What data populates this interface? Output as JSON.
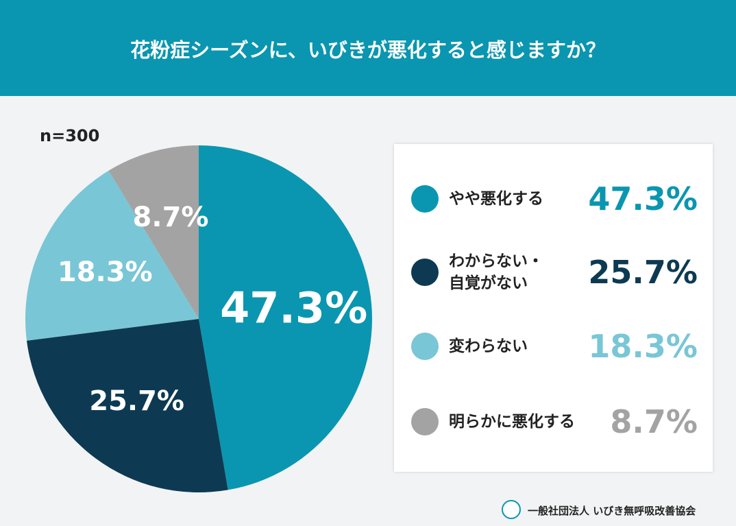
{
  "chart_data": {
    "type": "pie",
    "title": "花粉症シーズンに、いびきが悪化すると感じますか？",
    "note": "n=300",
    "categories": [
      "やや悪化する",
      "わからない・\n自覚がない",
      "変わらない",
      "明らかに悪化する"
    ],
    "values": [
      47.3,
      25.7,
      18.3,
      8.7
    ],
    "value_labels": [
      "47.3%",
      "25.7%",
      "18.3%",
      "8.7%"
    ],
    "colors": [
      "#0a96b0",
      "#0d3a52",
      "#79c6d6",
      "#a3a3a3"
    ]
  },
  "footer": {
    "text": "一般社団法人 いびき無呼吸改善協会"
  }
}
